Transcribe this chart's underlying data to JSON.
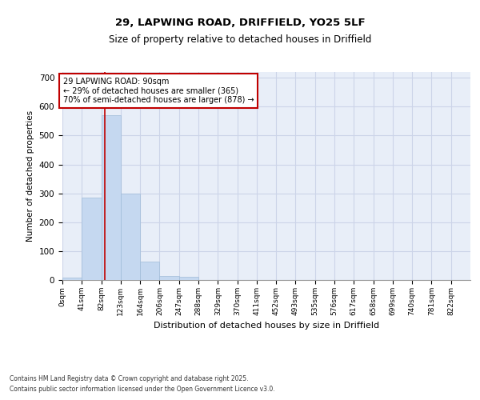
{
  "title1": "29, LAPWING ROAD, DRIFFIELD, YO25 5LF",
  "title2": "Size of property relative to detached houses in Driffield",
  "xlabel": "Distribution of detached houses by size in Driffield",
  "ylabel": "Number of detached properties",
  "bar_categories": [
    "0sqm",
    "41sqm",
    "82sqm",
    "123sqm",
    "164sqm",
    "206sqm",
    "247sqm",
    "288sqm",
    "329sqm",
    "370sqm",
    "411sqm",
    "452sqm",
    "493sqm",
    "535sqm",
    "576sqm",
    "617sqm",
    "658sqm",
    "699sqm",
    "740sqm",
    "781sqm",
    "822sqm"
  ],
  "bar_values": [
    8,
    285,
    570,
    300,
    65,
    15,
    10,
    0,
    0,
    0,
    0,
    0,
    0,
    0,
    0,
    0,
    0,
    0,
    0,
    0,
    0
  ],
  "bar_color": "#c5d8f0",
  "bar_edge_color": "#a0bcd8",
  "annotation_line1": "29 LAPWING ROAD: 90sqm",
  "annotation_line2": "← 29% of detached houses are smaller (365)",
  "annotation_line3": "70% of semi-detached houses are larger (878) →",
  "vline_color": "#c00000",
  "annotation_box_edge": "#c00000",
  "annotation_box_fill": "white",
  "ylim": [
    0,
    720
  ],
  "yticks": [
    0,
    100,
    200,
    300,
    400,
    500,
    600,
    700
  ],
  "grid_color": "#ccd4e8",
  "bg_color": "#e8eef8",
  "footer_line1": "Contains HM Land Registry data © Crown copyright and database right 2025.",
  "footer_line2": "Contains public sector information licensed under the Open Government Licence v3.0.",
  "bin_width": 41,
  "vline_x": 90
}
